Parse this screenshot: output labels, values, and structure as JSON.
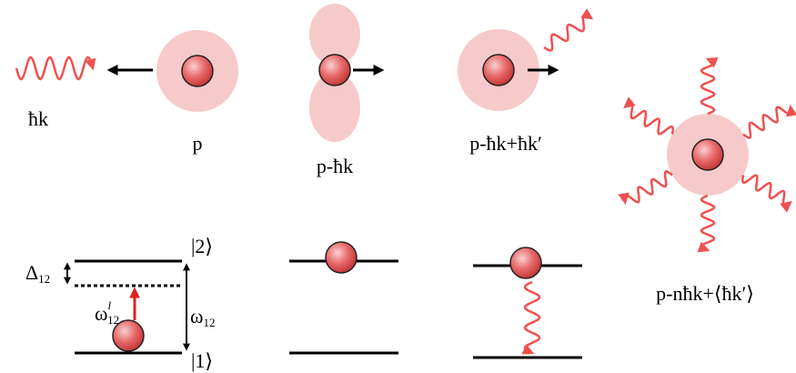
{
  "labels": {
    "photon": "ħk",
    "momentum": "p",
    "absorbed": "p-ħk",
    "emitted": "p-ħk+ħk′",
    "many": "p-nħk+⟨ħk′⟩"
  },
  "levels": {
    "detuning": {
      "symbol": "Δ",
      "sub": "12"
    },
    "upper": "|2⟩",
    "lower": "|1⟩",
    "laser": {
      "symbol": "ω",
      "sub": "12",
      "sup": "l"
    },
    "transition": {
      "symbol": "ω",
      "sub": "12"
    }
  }
}
